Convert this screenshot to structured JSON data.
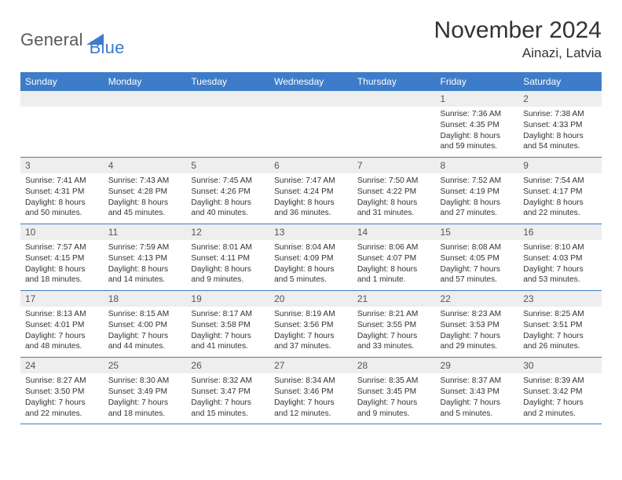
{
  "brand": {
    "part1": "General",
    "part2": "Blue",
    "mark_color": "#3d7cc9",
    "text_gray": "#5a5a5a"
  },
  "title": "November 2024",
  "location": "Ainazi, Latvia",
  "colors": {
    "header_bg": "#3d7cc9",
    "header_text": "#ffffff",
    "daynum_bg": "#eeeeee",
    "daynum_text": "#555555",
    "body_text": "#333333",
    "row_divider": "#3d7cc9",
    "page_bg": "#ffffff"
  },
  "typography": {
    "title_fontsize": 30,
    "location_fontsize": 17,
    "weekday_fontsize": 12,
    "daynum_fontsize": 12,
    "body_fontsize": 10.2
  },
  "weekdays": [
    "Sunday",
    "Monday",
    "Tuesday",
    "Wednesday",
    "Thursday",
    "Friday",
    "Saturday"
  ],
  "weeks": [
    [
      null,
      null,
      null,
      null,
      null,
      {
        "day": "1",
        "sunrise": "Sunrise: 7:36 AM",
        "sunset": "Sunset: 4:35 PM",
        "daylight1": "Daylight: 8 hours",
        "daylight2": "and 59 minutes."
      },
      {
        "day": "2",
        "sunrise": "Sunrise: 7:38 AM",
        "sunset": "Sunset: 4:33 PM",
        "daylight1": "Daylight: 8 hours",
        "daylight2": "and 54 minutes."
      }
    ],
    [
      {
        "day": "3",
        "sunrise": "Sunrise: 7:41 AM",
        "sunset": "Sunset: 4:31 PM",
        "daylight1": "Daylight: 8 hours",
        "daylight2": "and 50 minutes."
      },
      {
        "day": "4",
        "sunrise": "Sunrise: 7:43 AM",
        "sunset": "Sunset: 4:28 PM",
        "daylight1": "Daylight: 8 hours",
        "daylight2": "and 45 minutes."
      },
      {
        "day": "5",
        "sunrise": "Sunrise: 7:45 AM",
        "sunset": "Sunset: 4:26 PM",
        "daylight1": "Daylight: 8 hours",
        "daylight2": "and 40 minutes."
      },
      {
        "day": "6",
        "sunrise": "Sunrise: 7:47 AM",
        "sunset": "Sunset: 4:24 PM",
        "daylight1": "Daylight: 8 hours",
        "daylight2": "and 36 minutes."
      },
      {
        "day": "7",
        "sunrise": "Sunrise: 7:50 AM",
        "sunset": "Sunset: 4:22 PM",
        "daylight1": "Daylight: 8 hours",
        "daylight2": "and 31 minutes."
      },
      {
        "day": "8",
        "sunrise": "Sunrise: 7:52 AM",
        "sunset": "Sunset: 4:19 PM",
        "daylight1": "Daylight: 8 hours",
        "daylight2": "and 27 minutes."
      },
      {
        "day": "9",
        "sunrise": "Sunrise: 7:54 AM",
        "sunset": "Sunset: 4:17 PM",
        "daylight1": "Daylight: 8 hours",
        "daylight2": "and 22 minutes."
      }
    ],
    [
      {
        "day": "10",
        "sunrise": "Sunrise: 7:57 AM",
        "sunset": "Sunset: 4:15 PM",
        "daylight1": "Daylight: 8 hours",
        "daylight2": "and 18 minutes."
      },
      {
        "day": "11",
        "sunrise": "Sunrise: 7:59 AM",
        "sunset": "Sunset: 4:13 PM",
        "daylight1": "Daylight: 8 hours",
        "daylight2": "and 14 minutes."
      },
      {
        "day": "12",
        "sunrise": "Sunrise: 8:01 AM",
        "sunset": "Sunset: 4:11 PM",
        "daylight1": "Daylight: 8 hours",
        "daylight2": "and 9 minutes."
      },
      {
        "day": "13",
        "sunrise": "Sunrise: 8:04 AM",
        "sunset": "Sunset: 4:09 PM",
        "daylight1": "Daylight: 8 hours",
        "daylight2": "and 5 minutes."
      },
      {
        "day": "14",
        "sunrise": "Sunrise: 8:06 AM",
        "sunset": "Sunset: 4:07 PM",
        "daylight1": "Daylight: 8 hours",
        "daylight2": "and 1 minute."
      },
      {
        "day": "15",
        "sunrise": "Sunrise: 8:08 AM",
        "sunset": "Sunset: 4:05 PM",
        "daylight1": "Daylight: 7 hours",
        "daylight2": "and 57 minutes."
      },
      {
        "day": "16",
        "sunrise": "Sunrise: 8:10 AM",
        "sunset": "Sunset: 4:03 PM",
        "daylight1": "Daylight: 7 hours",
        "daylight2": "and 53 minutes."
      }
    ],
    [
      {
        "day": "17",
        "sunrise": "Sunrise: 8:13 AM",
        "sunset": "Sunset: 4:01 PM",
        "daylight1": "Daylight: 7 hours",
        "daylight2": "and 48 minutes."
      },
      {
        "day": "18",
        "sunrise": "Sunrise: 8:15 AM",
        "sunset": "Sunset: 4:00 PM",
        "daylight1": "Daylight: 7 hours",
        "daylight2": "and 44 minutes."
      },
      {
        "day": "19",
        "sunrise": "Sunrise: 8:17 AM",
        "sunset": "Sunset: 3:58 PM",
        "daylight1": "Daylight: 7 hours",
        "daylight2": "and 41 minutes."
      },
      {
        "day": "20",
        "sunrise": "Sunrise: 8:19 AM",
        "sunset": "Sunset: 3:56 PM",
        "daylight1": "Daylight: 7 hours",
        "daylight2": "and 37 minutes."
      },
      {
        "day": "21",
        "sunrise": "Sunrise: 8:21 AM",
        "sunset": "Sunset: 3:55 PM",
        "daylight1": "Daylight: 7 hours",
        "daylight2": "and 33 minutes."
      },
      {
        "day": "22",
        "sunrise": "Sunrise: 8:23 AM",
        "sunset": "Sunset: 3:53 PM",
        "daylight1": "Daylight: 7 hours",
        "daylight2": "and 29 minutes."
      },
      {
        "day": "23",
        "sunrise": "Sunrise: 8:25 AM",
        "sunset": "Sunset: 3:51 PM",
        "daylight1": "Daylight: 7 hours",
        "daylight2": "and 26 minutes."
      }
    ],
    [
      {
        "day": "24",
        "sunrise": "Sunrise: 8:27 AM",
        "sunset": "Sunset: 3:50 PM",
        "daylight1": "Daylight: 7 hours",
        "daylight2": "and 22 minutes."
      },
      {
        "day": "25",
        "sunrise": "Sunrise: 8:30 AM",
        "sunset": "Sunset: 3:49 PM",
        "daylight1": "Daylight: 7 hours",
        "daylight2": "and 18 minutes."
      },
      {
        "day": "26",
        "sunrise": "Sunrise: 8:32 AM",
        "sunset": "Sunset: 3:47 PM",
        "daylight1": "Daylight: 7 hours",
        "daylight2": "and 15 minutes."
      },
      {
        "day": "27",
        "sunrise": "Sunrise: 8:34 AM",
        "sunset": "Sunset: 3:46 PM",
        "daylight1": "Daylight: 7 hours",
        "daylight2": "and 12 minutes."
      },
      {
        "day": "28",
        "sunrise": "Sunrise: 8:35 AM",
        "sunset": "Sunset: 3:45 PM",
        "daylight1": "Daylight: 7 hours",
        "daylight2": "and 9 minutes."
      },
      {
        "day": "29",
        "sunrise": "Sunrise: 8:37 AM",
        "sunset": "Sunset: 3:43 PM",
        "daylight1": "Daylight: 7 hours",
        "daylight2": "and 5 minutes."
      },
      {
        "day": "30",
        "sunrise": "Sunrise: 8:39 AM",
        "sunset": "Sunset: 3:42 PM",
        "daylight1": "Daylight: 7 hours",
        "daylight2": "and 2 minutes."
      }
    ]
  ]
}
